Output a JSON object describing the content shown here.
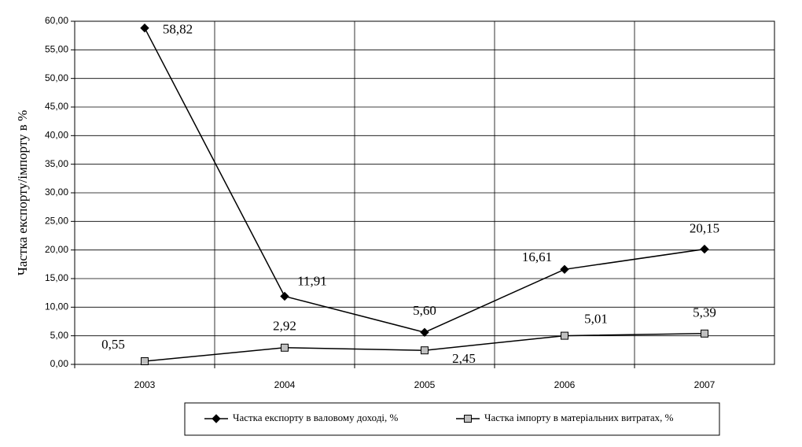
{
  "chart_data": {
    "type": "line",
    "y_label": "Частка експорту/імпорту в %",
    "categories": [
      "2003",
      "2004",
      "2005",
      "2006",
      "2007"
    ],
    "series": [
      {
        "name": "Частка експорту в валовому доході, %",
        "color": "#000000",
        "marker": "diamond",
        "values": [
          58.82,
          11.91,
          5.6,
          16.61,
          20.15
        ],
        "value_labels": [
          "58,82",
          "11,91",
          "5,60",
          "16,61",
          "20,15"
        ]
      },
      {
        "name": "Частка імпорту в матеріальних витратах, %",
        "color": "#c0c0c0",
        "marker": "square",
        "values": [
          0.55,
          2.92,
          2.45,
          5.01,
          5.39
        ],
        "value_labels": [
          "0,55",
          "2,92",
          "2,45",
          "5,01",
          "5,39"
        ]
      }
    ],
    "ylim": [
      0,
      60
    ],
    "yticks": [
      {
        "value": 0,
        "label": "0,00"
      },
      {
        "value": 5,
        "label": "5,00"
      },
      {
        "value": 10,
        "label": "10,00"
      },
      {
        "value": 15,
        "label": "15,00"
      },
      {
        "value": 20,
        "label": "20,00"
      },
      {
        "value": 25,
        "label": "25,00"
      },
      {
        "value": 30,
        "label": "30,00"
      },
      {
        "value": 35,
        "label": "35,00"
      },
      {
        "value": 40,
        "label": "40,00"
      },
      {
        "value": 45,
        "label": "45,00"
      },
      {
        "value": 50,
        "label": "50,00"
      },
      {
        "value": 55,
        "label": "55,00"
      },
      {
        "value": 60,
        "label": "60,00"
      }
    ],
    "grid": true,
    "legend": "bottom"
  }
}
